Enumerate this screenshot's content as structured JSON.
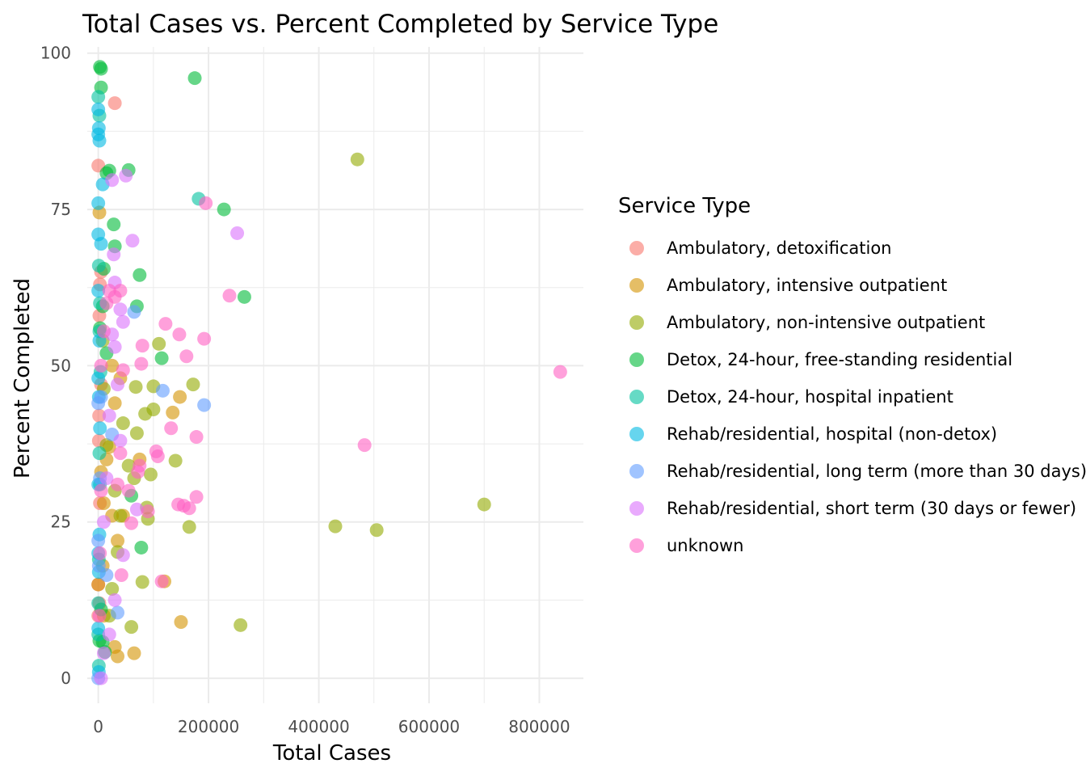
{
  "chart_data": {
    "type": "scatter",
    "title": "Total Cases vs. Percent Completed by Service Type",
    "xlabel": "Total Cases",
    "ylabel": "Percent Completed",
    "xlim": [
      -20000,
      880000
    ],
    "ylim": [
      -4,
      101
    ],
    "x_ticks": [
      0,
      200000,
      400000,
      600000,
      800000
    ],
    "y_ticks": [
      0,
      25,
      50,
      75,
      100
    ],
    "grid": true,
    "legend_position": "right",
    "legend_title": "Service Type",
    "point_opacity": 0.6,
    "series": [
      {
        "name": "Ambulatory, detoxification",
        "color": "#F8766D",
        "points": [
          [
            30000,
            92
          ],
          [
            0,
            82
          ],
          [
            3000,
            63
          ],
          [
            2000,
            58
          ],
          [
            5000,
            47
          ],
          [
            1500,
            42
          ],
          [
            1000,
            38
          ],
          [
            3000,
            28
          ],
          [
            0,
            15
          ],
          [
            2000,
            12
          ],
          [
            0,
            10
          ],
          [
            5000,
            65
          ]
        ]
      },
      {
        "name": "Ambulatory, intensive outpatient",
        "color": "#D39200",
        "points": [
          [
            2000,
            74.5
          ],
          [
            25000,
            50
          ],
          [
            30000,
            44
          ],
          [
            20000,
            37
          ],
          [
            15000,
            35
          ],
          [
            5000,
            33
          ],
          [
            10000,
            28
          ],
          [
            25000,
            26
          ],
          [
            35000,
            22
          ],
          [
            45000,
            26
          ],
          [
            8000,
            18
          ],
          [
            30000,
            5
          ],
          [
            35000,
            3.5
          ],
          [
            65000,
            4
          ],
          [
            75000,
            35
          ],
          [
            135000,
            42.5
          ],
          [
            148000,
            45
          ],
          [
            120000,
            15.5
          ],
          [
            150000,
            9
          ],
          [
            0,
            15
          ],
          [
            10000,
            10
          ],
          [
            40000,
            48
          ]
        ]
      },
      {
        "name": "Ambulatory, non-intensive outpatient",
        "color": "#93AA00",
        "points": [
          [
            470000,
            83
          ],
          [
            700000,
            27.8
          ],
          [
            430000,
            24.3
          ],
          [
            505000,
            23.7
          ],
          [
            258000,
            8.5
          ],
          [
            172000,
            47
          ],
          [
            165000,
            24.2
          ],
          [
            110000,
            53.5
          ],
          [
            140000,
            34.8
          ],
          [
            100000,
            43
          ],
          [
            100000,
            46.7
          ],
          [
            85000,
            42.3
          ],
          [
            95000,
            32.6
          ],
          [
            90000,
            25.5
          ],
          [
            88000,
            27.3
          ],
          [
            80000,
            15.4
          ],
          [
            70000,
            39.2
          ],
          [
            68000,
            46.6
          ],
          [
            65000,
            32
          ],
          [
            55000,
            34
          ],
          [
            60000,
            8.2
          ],
          [
            45000,
            40.8
          ],
          [
            40000,
            26
          ],
          [
            35000,
            20.2
          ],
          [
            30000,
            30
          ],
          [
            25000,
            14.3
          ],
          [
            20000,
            10
          ],
          [
            15000,
            37.3
          ],
          [
            10000,
            46.3
          ],
          [
            8000,
            54
          ]
        ]
      },
      {
        "name": "Detox, 24-hour, free-standing residential",
        "color": "#00BA38",
        "points": [
          [
            175000,
            96
          ],
          [
            228000,
            75
          ],
          [
            265000,
            61
          ],
          [
            115000,
            51.2
          ],
          [
            75000,
            64.5
          ],
          [
            78000,
            20.9
          ],
          [
            55000,
            81.3
          ],
          [
            28000,
            72.6
          ],
          [
            30000,
            69.1
          ],
          [
            20000,
            81.2
          ],
          [
            15000,
            80.8
          ],
          [
            70000,
            59.5
          ],
          [
            5000,
            97.5
          ],
          [
            3000,
            97.8
          ],
          [
            5000,
            94.5
          ],
          [
            10000,
            65.5
          ],
          [
            8000,
            59.5
          ],
          [
            3000,
            56
          ],
          [
            5000,
            11
          ],
          [
            2000,
            6
          ],
          [
            8000,
            5.8
          ],
          [
            12000,
            4.2
          ],
          [
            60000,
            29.2
          ],
          [
            15000,
            52
          ]
        ]
      },
      {
        "name": "Detox, 24-hour, hospital inpatient",
        "color": "#00C19F",
        "points": [
          [
            182000,
            76.7
          ],
          [
            0,
            93
          ],
          [
            2000,
            90
          ],
          [
            1000,
            66
          ],
          [
            3000,
            60
          ],
          [
            2000,
            55.5
          ],
          [
            4000,
            49
          ],
          [
            2000,
            36
          ],
          [
            3000,
            31
          ],
          [
            1000,
            19
          ],
          [
            0,
            12
          ],
          [
            0,
            7
          ],
          [
            1000,
            2
          ]
        ]
      },
      {
        "name": "Rehab/residential, hospital (non-detox)",
        "color": "#00B9E3",
        "points": [
          [
            0,
            91
          ],
          [
            1000,
            88
          ],
          [
            0,
            87
          ],
          [
            2000,
            86
          ],
          [
            0,
            76
          ],
          [
            8000,
            79
          ],
          [
            0,
            71
          ],
          [
            5000,
            69.5
          ],
          [
            0,
            62
          ],
          [
            2000,
            54
          ],
          [
            0,
            48
          ],
          [
            1000,
            45
          ],
          [
            3000,
            40
          ],
          [
            0,
            31
          ],
          [
            2000,
            23
          ],
          [
            0,
            20
          ],
          [
            1000,
            17
          ],
          [
            0,
            8
          ],
          [
            1000,
            1
          ]
        ]
      },
      {
        "name": "Rehab/residential, long term (more than 30 days)",
        "color": "#619CFF",
        "points": [
          [
            192000,
            43.7
          ],
          [
            117000,
            46
          ],
          [
            65000,
            58.6
          ],
          [
            35000,
            10.5
          ],
          [
            25000,
            39
          ],
          [
            15000,
            16.5
          ],
          [
            5000,
            45
          ],
          [
            0,
            44
          ],
          [
            3000,
            32
          ],
          [
            0,
            22
          ],
          [
            1000,
            18
          ],
          [
            0,
            0
          ]
        ]
      },
      {
        "name": "Rehab/residential, short term (30 days or fewer)",
        "color": "#DB72FB",
        "points": [
          [
            252000,
            71.2
          ],
          [
            50000,
            80.4
          ],
          [
            25000,
            79.7
          ],
          [
            62000,
            70
          ],
          [
            30000,
            63.3
          ],
          [
            28000,
            67.8
          ],
          [
            40000,
            59
          ],
          [
            45000,
            57
          ],
          [
            25000,
            55
          ],
          [
            30000,
            53
          ],
          [
            35000,
            47
          ],
          [
            20000,
            42
          ],
          [
            40000,
            38
          ],
          [
            15000,
            32
          ],
          [
            45000,
            19.7
          ],
          [
            30000,
            12.5
          ],
          [
            20000,
            7
          ],
          [
            10000,
            4
          ],
          [
            70000,
            27
          ],
          [
            5000,
            0
          ],
          [
            10000,
            25
          ]
        ]
      },
      {
        "name": "unknown",
        "color": "#FF61C3",
        "points": [
          [
            838000,
            49
          ],
          [
            483000,
            37.3
          ],
          [
            238000,
            61.2
          ],
          [
            195000,
            76
          ],
          [
            192000,
            54.3
          ],
          [
            160000,
            51.5
          ],
          [
            147000,
            55
          ],
          [
            122000,
            56.7
          ],
          [
            80000,
            53.2
          ],
          [
            78000,
            50.3
          ],
          [
            105000,
            36.3
          ],
          [
            108000,
            35.5
          ],
          [
            132000,
            40
          ],
          [
            178000,
            38.6
          ],
          [
            178000,
            29
          ],
          [
            165000,
            27.2
          ],
          [
            155000,
            27.6
          ],
          [
            145000,
            27.8
          ],
          [
            90000,
            26.7
          ],
          [
            72000,
            33
          ],
          [
            75000,
            34
          ],
          [
            60000,
            24.8
          ],
          [
            55000,
            30
          ],
          [
            42000,
            16.5
          ],
          [
            115000,
            15.5
          ],
          [
            35000,
            31
          ],
          [
            40000,
            36
          ],
          [
            45000,
            49.3
          ],
          [
            40000,
            62
          ],
          [
            30000,
            61
          ],
          [
            20000,
            62
          ],
          [
            15000,
            60
          ],
          [
            10000,
            55.5
          ],
          [
            5000,
            50
          ],
          [
            5000,
            30
          ],
          [
            3000,
            20
          ],
          [
            2000,
            10
          ]
        ]
      }
    ]
  }
}
